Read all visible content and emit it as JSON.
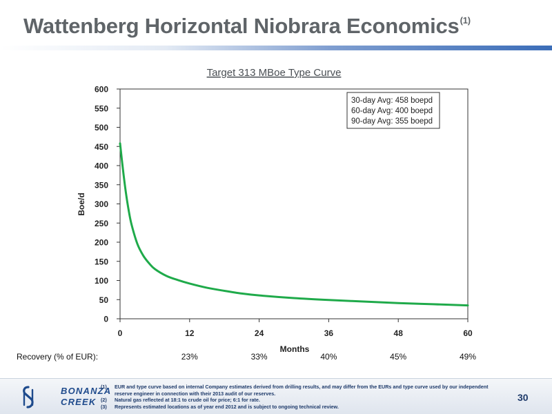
{
  "slide": {
    "title": "Wattenberg Horizontal Niobrara Economics",
    "title_sup": "(1)",
    "page_number": "30"
  },
  "chart_data": {
    "type": "line",
    "title": "Target 313 MBoe Type Curve",
    "xlabel": "Months",
    "ylabel": "Boe/d",
    "xlim": [
      0,
      60
    ],
    "ylim": [
      0,
      600
    ],
    "x_ticks": [
      "0",
      "12",
      "24",
      "36",
      "48",
      "60"
    ],
    "y_ticks": [
      "0",
      "50",
      "100",
      "150",
      "200",
      "250",
      "300",
      "350",
      "400",
      "450",
      "500",
      "550",
      "600"
    ],
    "grid": false,
    "series": [
      {
        "color": "#1faa4a",
        "x": [
          0,
          0.5,
          1,
          1.5,
          2,
          3,
          4,
          5,
          6,
          8,
          10,
          12,
          15,
          18,
          21,
          24,
          30,
          36,
          42,
          48,
          54,
          60
        ],
        "y": [
          458,
          390,
          330,
          282,
          245,
          195,
          165,
          145,
          130,
          112,
          101,
          92,
          81,
          73,
          66,
          61,
          54,
          49,
          45,
          41,
          38,
          35
        ]
      }
    ],
    "annotation_box": {
      "lines": [
        "30-day Avg: 458 boepd",
        "60-day Avg: 400 boepd",
        "90-day Avg: 355 boepd"
      ],
      "placement": "top-right"
    },
    "recovery": {
      "label": "Recovery (% of EUR):",
      "values": [
        "23%",
        "33%",
        "40%",
        "45%",
        "49%"
      ],
      "x": [
        12,
        24,
        36,
        48,
        60
      ]
    }
  },
  "footer": {
    "logo_line1": "BONANZA",
    "logo_line2": "CREEK",
    "footnotes": [
      {
        "num": "(1)",
        "text": "EUR and type curve based on internal Company estimates derived from drilling results, and may differ from the EURs and type curve used by our independent reserve engineer in connection with their 2013 audit of our reserves."
      },
      {
        "num": "(2)",
        "text": "Natural gas reflected at 18:1 to crude oil for price; 6:1 for rate."
      },
      {
        "num": "(3)",
        "text": "Represents estimated locations as of year end 2012 and is subject to ongoing technical review."
      }
    ]
  }
}
